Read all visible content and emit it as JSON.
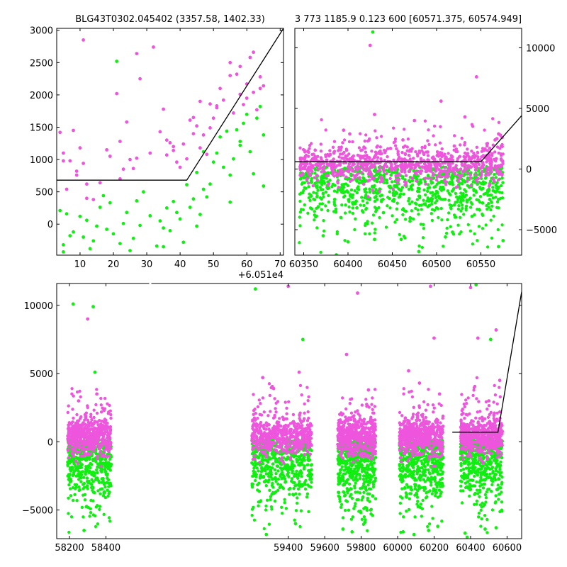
{
  "chart_data": [
    {
      "type": "scatter",
      "panel": "top-left",
      "title": "BLG43T0302.045402 (3357.58, 1402.33)",
      "xlabel": "",
      "ylabel": "",
      "x_offset_label": "+6.051e4",
      "xlim": [
        3,
        71
      ],
      "ylim": [
        -480,
        3030
      ],
      "xticks": [
        10,
        20,
        30,
        40,
        50,
        60,
        70
      ],
      "xtick_labels": [
        "10",
        "20",
        "30",
        "40",
        "50",
        "60",
        "70"
      ],
      "yticks": [
        0,
        500,
        1000,
        1500,
        2000,
        2500,
        3000
      ],
      "ytick_labels": [
        "0",
        "500",
        "1000",
        "1500",
        "2000",
        "2500",
        "3000"
      ],
      "series": [
        {
          "color": "#ee55dd",
          "x": [
            4,
            5,
            7,
            8,
            9,
            10,
            11,
            12,
            14,
            18,
            19,
            21,
            22,
            23,
            24,
            25,
            27,
            28,
            32,
            34,
            35,
            36,
            37,
            38,
            39,
            40,
            41,
            43,
            44,
            45,
            46,
            47,
            48,
            49,
            50,
            51,
            52,
            53,
            55,
            56,
            57,
            58,
            59,
            60,
            61,
            62,
            63,
            64,
            65,
            5,
            9,
            12,
            22,
            27,
            36,
            42,
            46,
            51,
            58,
            62,
            64,
            6,
            11,
            16,
            26,
            31,
            38,
            44,
            49,
            55,
            60
          ],
          "y": [
            1420,
            1100,
            980,
            1450,
            820,
            1180,
            2850,
            620,
            380,
            1150,
            1050,
            2020,
            700,
            850,
            1580,
            1000,
            2640,
            2250,
            2740,
            1430,
            1780,
            1070,
            1260,
            1140,
            960,
            880,
            1240,
            1610,
            1400,
            1520,
            1180,
            1380,
            1080,
            1490,
            1640,
            1800,
            2100,
            1920,
            2500,
            1720,
            2320,
            2010,
            1850,
            2170,
            2580,
            2040,
            1770,
            2280,
            2140,
            980,
            760,
            400,
            1280,
            1020,
            1300,
            1010,
            1900,
            1830,
            2440,
            2660,
            2100,
            540,
            940,
            640,
            860,
            1100,
            1200,
            1650,
            1860,
            2300,
            1950
          ]
        },
        {
          "color": "#11ee11",
          "x": [
            4,
            5,
            6,
            8,
            10,
            11,
            12,
            13,
            14,
            16,
            18,
            19,
            20,
            21,
            22,
            23,
            24,
            26,
            27,
            29,
            31,
            33,
            34,
            35,
            36,
            37,
            38,
            40,
            41,
            42,
            43,
            44,
            45,
            46,
            47,
            48,
            49,
            50,
            51,
            52,
            53,
            54,
            55,
            56,
            57,
            58,
            59,
            60,
            61,
            62,
            63,
            64,
            65,
            5,
            15,
            25,
            35,
            45,
            55,
            65,
            7,
            17,
            28,
            39,
            47,
            58
          ],
          "y": [
            210,
            -320,
            160,
            -120,
            120,
            -200,
            60,
            -380,
            -260,
            260,
            -80,
            330,
            -150,
            2520,
            -300,
            10,
            180,
            -220,
            360,
            500,
            130,
            -340,
            50,
            -60,
            250,
            -100,
            350,
            80,
            -280,
            610,
            260,
            390,
            800,
            150,
            1120,
            420,
            620,
            960,
            1100,
            1350,
            880,
            1440,
            760,
            1010,
            1460,
            1220,
            1560,
            1700,
            1120,
            780,
            1640,
            1820,
            1380,
            -430,
            -30,
            -410,
            -350,
            -30,
            340,
            590,
            -180,
            440,
            -20,
            180,
            540,
            1280
          ]
        }
      ],
      "lines": [
        {
          "color": "#000000",
          "x": [
            3,
            42,
            71
          ],
          "y": [
            680,
            680,
            3030
          ]
        }
      ]
    },
    {
      "type": "scatter",
      "panel": "top-right",
      "title": "3 773 1185.9 0.123 600 [60571.375, 60574.949]",
      "xlabel": "",
      "ylabel": "",
      "xlim": [
        60340,
        60596
      ],
      "ylim": [
        -7100,
        11600
      ],
      "xticks": [
        60350,
        60400,
        60450,
        60500,
        60550
      ],
      "xtick_labels": [
        "60350",
        "60400",
        "60450",
        "60500",
        "60550"
      ],
      "yticks": [
        -5000,
        0,
        5000,
        10000
      ],
      "ytick_labels": [
        "−5000",
        "0",
        "5000",
        "10000"
      ],
      "y_axis_side": "right",
      "series": [
        {
          "color": "#ee55dd",
          "x": [
            60380,
            60395,
            60402,
            60418,
            60425,
            60430,
            60448,
            60462,
            60475,
            60490,
            60505,
            60520,
            60532,
            60545,
            60560,
            60566,
            60568,
            60570,
            60572,
            60574
          ],
          "y": [
            1200,
            3200,
            2900,
            1800,
            10200,
            4500,
            1700,
            2400,
            4000,
            1400,
            5600,
            1900,
            4300,
            7600,
            1700,
            2400,
            2500,
            2900,
            2800,
            2600
          ]
        },
        {
          "color": "#11ee11",
          "x": [
            60372,
            60385,
            60392,
            60400,
            60410,
            60420,
            60428,
            60430,
            60440,
            60452,
            60460,
            60470,
            60480,
            60492,
            60500,
            60510,
            60518,
            60528,
            60540,
            60552,
            60560,
            60570,
            60395,
            60455,
            60515,
            60575
          ],
          "y": [
            -5500,
            -2500,
            -4000,
            -6000,
            -3200,
            -4500,
            11300,
            -5800,
            -3600,
            -2500,
            -5800,
            -4300,
            -6800,
            -3000,
            -3200,
            -5600,
            -5200,
            -2500,
            -3900,
            -2800,
            -2500,
            -6400,
            -1500,
            -2000,
            -1200,
            -5900
          ]
        }
      ],
      "lines": [
        {
          "color": "#000000",
          "x": [
            60340,
            60550,
            60596
          ],
          "y": [
            600,
            600,
            4400
          ]
        }
      ]
    },
    {
      "type": "scatter",
      "panel": "bottom",
      "title": "",
      "xlabel": "",
      "ylabel": "",
      "xlim": [
        58130,
        60680
      ],
      "ylim": [
        -7100,
        11600
      ],
      "xticks": [
        58200,
        58400,
        59400,
        59600,
        59800,
        60000,
        60200,
        60400,
        60600
      ],
      "xtick_labels": [
        "58200",
        "58400",
        "59400",
        "59600",
        "59800",
        "60000",
        "60200",
        "60400",
        "60600"
      ],
      "yticks": [
        -5000,
        0,
        5000,
        10000
      ],
      "ytick_labels": [
        "−5000",
        "0",
        "5000",
        "10000"
      ],
      "seasons": [
        {
          "x_range": [
            58190,
            58430
          ]
        },
        {
          "x_range": [
            59200,
            59530
          ]
        },
        {
          "x_range": [
            59670,
            59880
          ]
        },
        {
          "x_range": [
            60010,
            60250
          ]
        },
        {
          "x_range": [
            60345,
            60575
          ]
        }
      ],
      "series": [
        {
          "color": "#ee55dd",
          "x": [
            58300,
            58350,
            58250,
            59260,
            59320,
            59400,
            59460,
            59720,
            59780,
            59840,
            60060,
            60120,
            60180,
            60200,
            60230,
            60400,
            60440,
            60500,
            60540,
            60560
          ],
          "y": [
            9000,
            3500,
            3000,
            4700,
            3900,
            11400,
            5100,
            6400,
            10900,
            3800,
            5200,
            4300,
            11400,
            7600,
            3500,
            11300,
            7600,
            3000,
            8200,
            4500
          ]
        },
        {
          "color": "#11ee11",
          "x": [
            58220,
            58280,
            58330,
            59220,
            59280,
            59440,
            59480,
            59700,
            59750,
            59820,
            60030,
            60090,
            60170,
            60220,
            60370,
            60430,
            60480,
            60540,
            58340,
            60510
          ],
          "y": [
            10100,
            -6500,
            9900,
            11200,
            -6800,
            -6000,
            7500,
            -6400,
            -6600,
            -5900,
            -6600,
            -6800,
            -6500,
            -6200,
            -6700,
            11500,
            -6400,
            -6300,
            5100,
            7500
          ]
        }
      ],
      "lines": [
        {
          "color": "#000000",
          "x": [
            60300,
            60550,
            60680
          ],
          "y": [
            700,
            700,
            11000
          ]
        }
      ]
    }
  ]
}
